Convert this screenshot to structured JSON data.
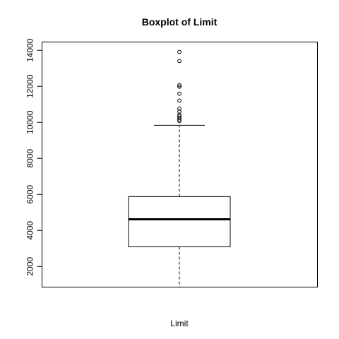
{
  "chart_data": {
    "type": "boxplot",
    "title": "Boxplot of Limit",
    "xlabel": "Limit",
    "ylabel": "",
    "ylim": [
      855,
      14460
    ],
    "yticks": [
      2000,
      4000,
      6000,
      8000,
      10000,
      12000,
      14000
    ],
    "ytick_labels": [
      "2000",
      "4000",
      "6000",
      "8000",
      "10000",
      "12000",
      "14000"
    ],
    "box": {
      "lower_whisker": 855,
      "q1": 3090,
      "median": 4620,
      "q3": 5880,
      "upper_whisker": 9840
    },
    "outliers": [
      10075,
      10160,
      10250,
      10330,
      10420,
      10600,
      10760,
      11210,
      11590,
      11980,
      12060,
      13410,
      13910
    ],
    "grid": false,
    "colors": {
      "stroke": "#000000",
      "background": "#ffffff"
    }
  }
}
